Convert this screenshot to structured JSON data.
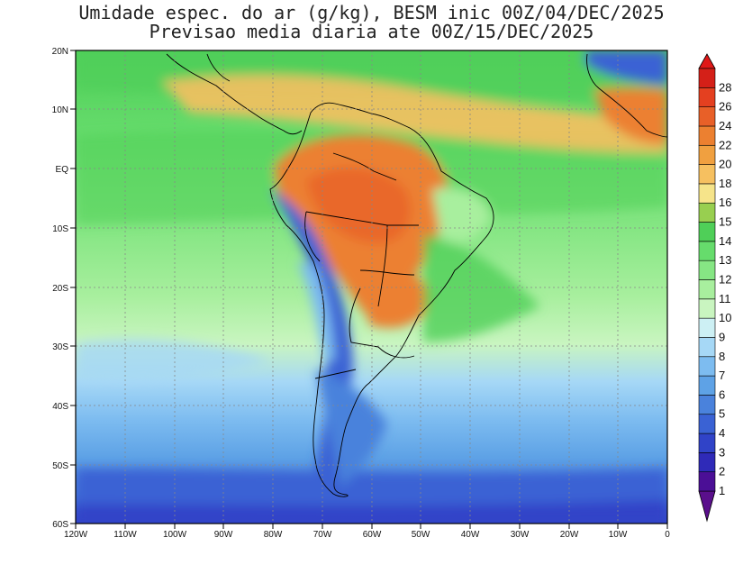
{
  "title": {
    "line1": "Umidade espec. do ar (g/kg), BESM inic 00Z/04/DEC/2025",
    "line2": "Previsao media diaria ate 00Z/15/DEC/2025"
  },
  "map": {
    "lat_labels": [
      "20N",
      "10N",
      "EQ",
      "10S",
      "20S",
      "30S",
      "40S",
      "50S",
      "60S"
    ],
    "lon_labels": [
      "120W",
      "110W",
      "100W",
      "90W",
      "80W",
      "70W",
      "60W",
      "50W",
      "40W",
      "30W",
      "20W",
      "10W",
      "0"
    ],
    "extent": {
      "lon": [
        -120,
        0
      ],
      "lat": [
        -60,
        20
      ]
    },
    "grid": "dotted"
  },
  "colorbar": {
    "levels": [
      "1",
      "2",
      "3",
      "4",
      "5",
      "6",
      "7",
      "8",
      "9",
      "10",
      "11",
      "12",
      "13",
      "14",
      "15",
      "16",
      "18",
      "20",
      "22",
      "24",
      "26",
      "28"
    ],
    "colors": [
      "#4b0f96",
      "#2f2ab8",
      "#3043c8",
      "#3a62d4",
      "#4a82dc",
      "#5ea2e6",
      "#7dbcf0",
      "#a6d8f6",
      "#cdf0f4",
      "#c9f5c0",
      "#a8ef9e",
      "#86e684",
      "#66dc6c",
      "#4fcf58",
      "#98cf50",
      "#f6e48a",
      "#f6c060",
      "#f0a040",
      "#ec8030",
      "#e86028",
      "#e44020",
      "#d42018"
    ],
    "min_color": "#5a0f8c",
    "max_color": "#e01818"
  }
}
